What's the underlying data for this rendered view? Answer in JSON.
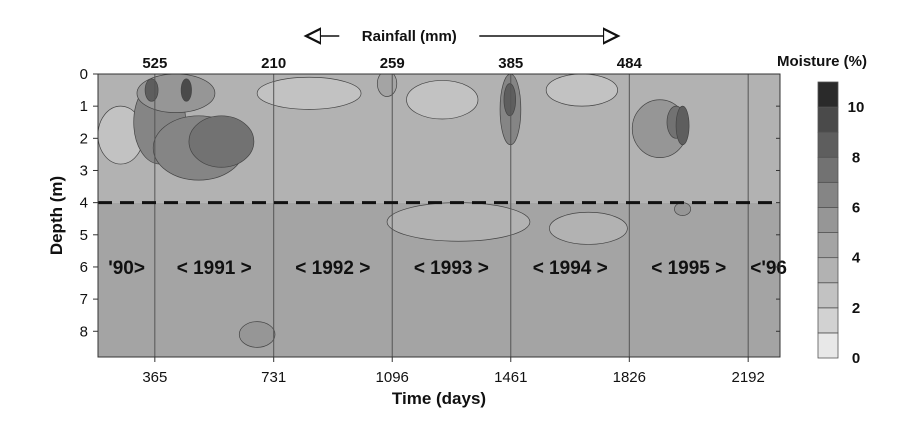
{
  "chart_data": {
    "type": "heatmap",
    "title": "",
    "xlabel": "Time (days)",
    "ylabel": "Depth (m)",
    "xlim": [
      190,
      2290
    ],
    "ylim": [
      0,
      8.8
    ],
    "x_ticks": [
      365,
      731,
      1096,
      1461,
      1826,
      2192
    ],
    "y_ticks": [
      0,
      1,
      2,
      3,
      4,
      5,
      6,
      7,
      8
    ],
    "rainfall": {
      "label": "Rainfall (mm)",
      "values": [
        {
          "x": 365,
          "value": "525"
        },
        {
          "x": 731,
          "value": "210"
        },
        {
          "x": 1096,
          "value": "259"
        },
        {
          "x": 1461,
          "value": "385"
        },
        {
          "x": 1826,
          "value": "484"
        }
      ]
    },
    "years": [
      {
        "label": "'90>",
        "x": 278
      },
      {
        "label": "< 1991 >",
        "x": 548
      },
      {
        "label": "< 1992 >",
        "x": 913
      },
      {
        "label": "< 1993 >",
        "x": 1278
      },
      {
        "label": "< 1994 >",
        "x": 1644
      },
      {
        "label": "< 1995 >",
        "x": 2009
      },
      {
        "label": "<'96",
        "x": 2255
      }
    ],
    "year_boundaries": [
      365,
      731,
      1096,
      1461,
      1826,
      2192
    ],
    "reference_depth": 4,
    "colorbar": {
      "title": "Moisture (%)",
      "ticks": [
        0,
        2,
        4,
        6,
        8,
        10
      ],
      "levels": [
        0,
        1,
        2,
        3,
        4,
        5,
        6,
        7,
        8,
        9,
        10,
        11
      ],
      "colors": [
        "#e8e8e8",
        "#d2d2d2",
        "#c2c2c2",
        "#b2b2b2",
        "#a4a4a4",
        "#969696",
        "#858585",
        "#727272",
        "#5e5e5e",
        "#4a4a4a",
        "#2a2a2a"
      ]
    },
    "background_moisture": [
      {
        "depth_from": 0,
        "depth_to": 4,
        "level": 3
      },
      {
        "depth_from": 4,
        "depth_to": 8.8,
        "level": 4
      }
    ],
    "wet_zones": [
      {
        "x": 380,
        "y": 1.5,
        "rx": 80,
        "ry": 1.3,
        "level": 6
      },
      {
        "x": 500,
        "y": 2.3,
        "rx": 140,
        "ry": 1.0,
        "level": 6
      },
      {
        "x": 570,
        "y": 2.1,
        "rx": 100,
        "ry": 0.8,
        "level": 7
      },
      {
        "x": 430,
        "y": 0.6,
        "rx": 120,
        "ry": 0.6,
        "level": 5
      },
      {
        "x": 355,
        "y": 0.5,
        "rx": 20,
        "ry": 0.35,
        "level": 8
      },
      {
        "x": 462,
        "y": 0.5,
        "rx": 16,
        "ry": 0.35,
        "level": 9
      },
      {
        "x": 1460,
        "y": 1.1,
        "rx": 32,
        "ry": 1.1,
        "level": 6
      },
      {
        "x": 1458,
        "y": 0.8,
        "rx": 18,
        "ry": 0.5,
        "level": 8
      },
      {
        "x": 1920,
        "y": 1.7,
        "rx": 85,
        "ry": 0.9,
        "level": 5
      },
      {
        "x": 1970,
        "y": 1.5,
        "rx": 28,
        "ry": 0.5,
        "level": 7
      },
      {
        "x": 1080,
        "y": 0.3,
        "rx": 30,
        "ry": 0.4,
        "level": 4
      },
      {
        "x": 1990,
        "y": 1.6,
        "rx": 20,
        "ry": 0.6,
        "level": 8
      }
    ],
    "dry_zones": [
      {
        "x": 260,
        "y": 1.9,
        "rx": 70,
        "ry": 0.9,
        "level": 2
      },
      {
        "x": 840,
        "y": 0.6,
        "rx": 160,
        "ry": 0.5,
        "level": 2
      },
      {
        "x": 1250,
        "y": 0.8,
        "rx": 110,
        "ry": 0.6,
        "level": 2
      },
      {
        "x": 1680,
        "y": 0.5,
        "rx": 110,
        "ry": 0.5,
        "level": 2
      },
      {
        "x": 1300,
        "y": 4.6,
        "rx": 220,
        "ry": 0.6,
        "level": 3
      },
      {
        "x": 1700,
        "y": 4.8,
        "rx": 120,
        "ry": 0.5,
        "level": 3
      },
      {
        "x": 680,
        "y": 8.1,
        "rx": 55,
        "ry": 0.4,
        "level": 5
      },
      {
        "x": 1990,
        "y": 4.2,
        "rx": 25,
        "ry": 0.2,
        "level": 5
      }
    ]
  }
}
